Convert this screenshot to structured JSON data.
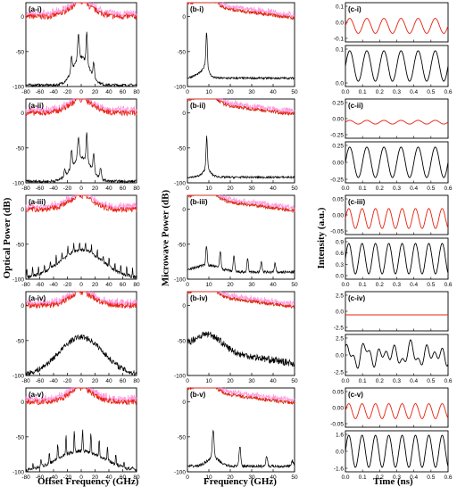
{
  "figure": {
    "col_a": {
      "ylabel": "Optical Power (dB)",
      "xlabel": "Offset Frequency (GHz)"
    },
    "col_b": {
      "ylabel": "Microwave Power (dB)",
      "xlabel": "Frequency (GHz)"
    },
    "col_c": {
      "ylabel": "Intensity (a.u.)",
      "xlabel": "Time (ns)"
    }
  },
  "colors": {
    "red": "#e8200f",
    "pink": "#ff7fd6",
    "black": "#000000",
    "green": "#1aa01a"
  },
  "chart_data": [
    {
      "id": "a-i",
      "type": "line",
      "label": "(a-i)",
      "xlim": [
        -80,
        80
      ],
      "ylim": [
        -100,
        0
      ],
      "xticks": [
        "-80",
        "-60",
        "-40",
        "-20",
        "0",
        "20",
        "40",
        "60",
        "80"
      ],
      "yticks": [
        "0",
        "-50",
        "-100"
      ],
      "series": [
        {
          "color": "red",
          "shape": "opt_broad",
          "offset": 5,
          "base": -45
        },
        {
          "color": "black",
          "shape": "opt_peaks",
          "offset": -55,
          "base": -100
        }
      ]
    },
    {
      "id": "b-i",
      "type": "line",
      "label": "(b-i)",
      "xlim": [
        0,
        50
      ],
      "ylim": [
        -100,
        0
      ],
      "xticks": [
        "0",
        "10",
        "20",
        "30",
        "40",
        "50"
      ],
      "yticks": [
        "0",
        "-50",
        "-100"
      ],
      "series": [
        {
          "color": "red",
          "shape": "mw_smooth",
          "offset": 0
        },
        {
          "color": "black",
          "shape": "mw_single",
          "offset": -55
        }
      ]
    },
    {
      "id": "c-i",
      "type": "line",
      "label": "(c-i)",
      "xlim": [
        0,
        0.6
      ],
      "top_ylim": [
        -0.1,
        0.1
      ],
      "bottom_ylim": [
        0,
        0.2
      ],
      "xticks": [
        "0.0",
        "0.1",
        "0.2",
        "0.3",
        "0.4",
        "0.5",
        "0.6"
      ],
      "top_yticks": [
        "0.1",
        "0.0",
        "-0.1"
      ],
      "bottom_yticks": [
        "0.1",
        "0.0"
      ],
      "series": [
        {
          "color": "red",
          "period": 0.1,
          "amp": 0.6
        },
        {
          "color": "black",
          "period": 0.1,
          "amp": 0.9
        }
      ]
    },
    {
      "id": "a-ii",
      "type": "line",
      "label": "(a-ii)",
      "xlim": [
        -80,
        80
      ],
      "ylim": [
        -100,
        0
      ],
      "xticks": [
        "-80",
        "-60",
        "-40",
        "-20",
        "0",
        "20",
        "40",
        "60",
        "80"
      ],
      "yticks": [
        "0",
        "-50",
        "-100"
      ],
      "series": [
        {
          "color": "red",
          "shape": "opt_broad"
        },
        {
          "color": "black",
          "shape": "opt_peaks2"
        }
      ]
    },
    {
      "id": "b-ii",
      "type": "line",
      "label": "(b-ii)",
      "xlim": [
        0,
        50
      ],
      "ylim": [
        -100,
        0
      ],
      "xticks": [
        "0",
        "10",
        "20",
        "30",
        "40",
        "50"
      ],
      "yticks": [
        "0",
        "-50",
        "-100"
      ],
      "series": [
        {
          "color": "red",
          "shape": "mw_smooth"
        },
        {
          "color": "black",
          "shape": "mw_single2"
        }
      ]
    },
    {
      "id": "c-ii",
      "type": "line",
      "label": "(c-ii)",
      "xlim": [
        0,
        0.6
      ],
      "xticks": [
        "0.0",
        "0.1",
        "0.2",
        "0.3",
        "0.4",
        "0.5",
        "0.6"
      ],
      "top_yticks": [
        "0.25",
        "0.00",
        "-0.25"
      ],
      "bottom_yticks": [
        "0.25",
        "0.00",
        "-0.25"
      ],
      "series": [
        {
          "color": "red",
          "period": 0.1,
          "amp": 0.15
        },
        {
          "color": "black",
          "period": 0.1,
          "amp": 0.9
        }
      ]
    },
    {
      "id": "a-iii",
      "type": "line",
      "label": "(a-iii)",
      "xlim": [
        -80,
        80
      ],
      "ylim": [
        -100,
        0
      ],
      "xticks": [
        "-80",
        "-60",
        "-40",
        "-20",
        "0",
        "20",
        "40",
        "60",
        "80"
      ],
      "yticks": [
        "0",
        "-50",
        "-100"
      ],
      "series": [
        {
          "color": "red",
          "shape": "opt_broad"
        },
        {
          "color": "black",
          "shape": "opt_comb"
        }
      ]
    },
    {
      "id": "b-iii",
      "type": "line",
      "label": "(b-iii)",
      "xlim": [
        0,
        50
      ],
      "ylim": [
        -100,
        0
      ],
      "xticks": [
        "0",
        "10",
        "20",
        "30",
        "40",
        "50"
      ],
      "yticks": [
        "0",
        "-50",
        "-100"
      ],
      "series": [
        {
          "color": "red",
          "shape": "mw_smooth"
        },
        {
          "color": "black",
          "shape": "mw_comb"
        }
      ]
    },
    {
      "id": "c-iii",
      "type": "line",
      "label": "(c-iii)",
      "xlim": [
        0,
        0.6
      ],
      "xticks": [
        "0.0",
        "0.1",
        "0.2",
        "0.3",
        "0.4",
        "0.5",
        "0.6"
      ],
      "top_yticks": [
        "0.05",
        "0.00",
        "-0.05"
      ],
      "bottom_yticks": [
        "0.9",
        "0.6",
        "0.3",
        "0.0"
      ],
      "series": [
        {
          "color": "red",
          "period": 0.078,
          "amp": 0.8
        },
        {
          "color": "black",
          "period": 0.078,
          "amp": 0.9
        }
      ]
    },
    {
      "id": "a-iv",
      "type": "line",
      "label": "(a-iv)",
      "xlim": [
        -80,
        80
      ],
      "ylim": [
        -100,
        0
      ],
      "xticks": [
        "-80",
        "-60",
        "-40",
        "-20",
        "0",
        "20",
        "40",
        "60",
        "80"
      ],
      "yticks": [
        "0",
        "-50",
        "-100"
      ],
      "series": [
        {
          "color": "red",
          "shape": "opt_broad"
        },
        {
          "color": "black",
          "shape": "opt_hump"
        }
      ]
    },
    {
      "id": "b-iv",
      "type": "line",
      "label": "(b-iv)",
      "xlim": [
        0,
        50
      ],
      "ylim": [
        -100,
        0
      ],
      "xticks": [
        "0",
        "10",
        "20",
        "30",
        "40",
        "50"
      ],
      "yticks": [
        "0",
        "-50",
        "-100"
      ],
      "series": [
        {
          "color": "red",
          "shape": "mw_smooth"
        },
        {
          "color": "black",
          "shape": "mw_noise"
        }
      ]
    },
    {
      "id": "c-iv",
      "type": "line",
      "label": "(c-iv)",
      "xlim": [
        0,
        0.6
      ],
      "xticks": [
        "0.0",
        "0.1",
        "0.2",
        "0.3",
        "0.4",
        "0.5",
        "0.6"
      ],
      "top_yticks": [
        "2.5",
        "0.0",
        "-2.5"
      ],
      "bottom_yticks": [
        "2.5",
        "0.0",
        "-2.5"
      ],
      "series": [
        {
          "color": "red",
          "period": 0.1,
          "amp": 0.0
        },
        {
          "color": "black",
          "period": 0.1,
          "amp": 0.9,
          "chaotic": true
        }
      ]
    },
    {
      "id": "a-v",
      "type": "line",
      "label": "(a-v)",
      "xlim": [
        -80,
        80
      ],
      "ylim": [
        -100,
        0
      ],
      "xticks": [
        "-80",
        "-60",
        "-40",
        "-20",
        "0",
        "20",
        "40",
        "60",
        "80"
      ],
      "yticks": [
        "0",
        "-50",
        "-100"
      ],
      "series": [
        {
          "color": "red",
          "shape": "opt_broad"
        },
        {
          "color": "black",
          "shape": "opt_comb2"
        }
      ]
    },
    {
      "id": "b-v",
      "type": "line",
      "label": "(b-v)",
      "xlim": [
        0,
        50
      ],
      "ylim": [
        -100,
        0
      ],
      "xticks": [
        "0",
        "10",
        "20",
        "30",
        "40",
        "50"
      ],
      "yticks": [
        "0",
        "-50",
        "-100"
      ],
      "series": [
        {
          "color": "red",
          "shape": "mw_smooth"
        },
        {
          "color": "black",
          "shape": "mw_comb2"
        }
      ]
    },
    {
      "id": "c-v",
      "type": "line",
      "label": "(c-v)",
      "xlim": [
        0,
        0.6
      ],
      "xticks": [
        "0.0",
        "0.1",
        "0.2",
        "0.3",
        "0.4",
        "0.5",
        "0.6"
      ],
      "top_yticks": [
        "0.05",
        "0.00",
        "-0.05"
      ],
      "bottom_yticks": [
        "1.6",
        "0.0",
        "-1.6"
      ],
      "series": [
        {
          "color": "red",
          "period": 0.078,
          "amp": 0.6
        },
        {
          "color": "black",
          "period": 0.078,
          "amp": 0.95
        }
      ]
    }
  ]
}
